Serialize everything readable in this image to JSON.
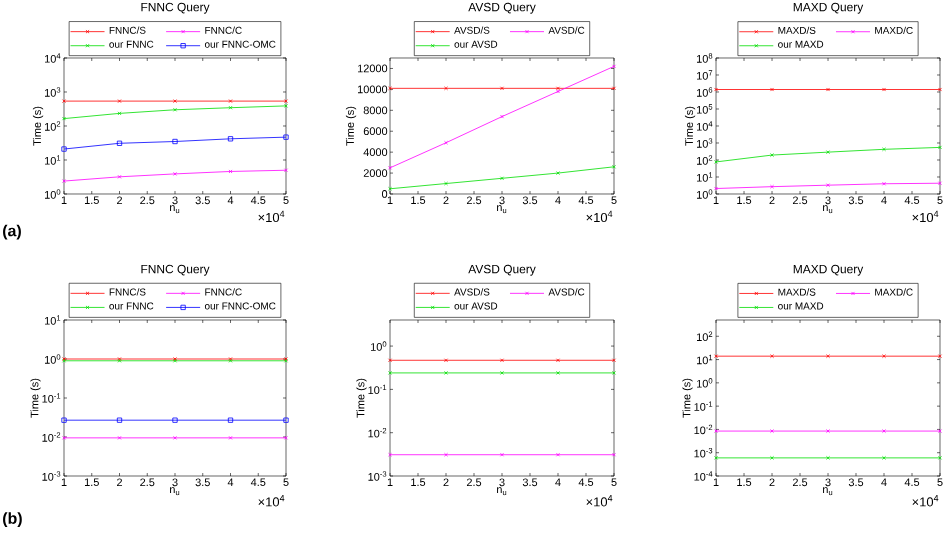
{
  "chart_data": [
    {
      "type": "line",
      "title": "FNNC Query",
      "xlabel": "n$_{u}$",
      "ylabel": "Time (s)",
      "annotations": [
        "×10$^{4}$",
        "(a)"
      ],
      "x": [
        1,
        2,
        3,
        4,
        5
      ],
      "xlim": [
        1,
        5
      ],
      "xticks": [
        1,
        1.5,
        2,
        2.5,
        3,
        3.5,
        4,
        4.5,
        5
      ],
      "log": true,
      "ylim": [
        1,
        10000
      ],
      "yticks": [
        {
          "value": 1,
          "label": "10$^{0}$"
        },
        {
          "value": 10,
          "label": "10$^{1}$"
        },
        {
          "value": 100,
          "label": "10$^{2}$"
        },
        {
          "value": 1000,
          "label": "10$^{3}$"
        },
        {
          "value": 10000,
          "label": "10$^{4}$"
        }
      ],
      "legend": "top left",
      "series": [
        {
          "name": "FNNC/S",
          "color": "#ff0000",
          "marker": "cross",
          "values": [
            540,
            540,
            540,
            540,
            540
          ]
        },
        {
          "name": "FNNC/C",
          "color": "#ff00ff",
          "marker": "cross",
          "values": [
            2.4,
            3.2,
            3.9,
            4.6,
            5.0
          ]
        },
        {
          "name": "our FNNC",
          "color": "#00dd00",
          "marker": "cross",
          "values": [
            165,
            235,
            300,
            345,
            390
          ]
        },
        {
          "name": "our FNNC-OMC",
          "color": "#0000ff",
          "marker": "square",
          "values": [
            21,
            31,
            35,
            42,
            47
          ]
        }
      ]
    },
    {
      "type": "line",
      "title": "AVSD Query",
      "xlabel": "n$_{u}$",
      "ylabel": "Time (s)",
      "annotations": [
        "×10$^{4}$"
      ],
      "x": [
        1,
        2,
        3,
        4,
        5
      ],
      "xlim": [
        1,
        5
      ],
      "xticks": [
        1,
        1.5,
        2,
        2.5,
        3,
        3.5,
        4,
        4.5,
        5
      ],
      "ylim": [
        0,
        13000
      ],
      "yticks": [
        0,
        2000,
        4000,
        6000,
        8000,
        10000,
        12000
      ],
      "legend": "top left",
      "series": [
        {
          "name": "AVSD/S",
          "color": "#ff0000",
          "marker": "cross",
          "values": [
            10100,
            10100,
            10100,
            10100,
            10100
          ]
        },
        {
          "name": "AVSD/C",
          "color": "#ff00ff",
          "marker": "cross",
          "values": [
            2500,
            4900,
            7400,
            9800,
            12200
          ]
        },
        {
          "name": "our AVSD",
          "color": "#00dd00",
          "marker": "cross",
          "values": [
            500,
            1000,
            1500,
            2000,
            2600
          ]
        }
      ]
    },
    {
      "type": "line",
      "title": "MAXD Query",
      "xlabel": "n$_{u}$",
      "ylabel": "Time (s)",
      "annotations": [
        "×10$^{4}$"
      ],
      "x": [
        1,
        2,
        3,
        4,
        5
      ],
      "xlim": [
        1,
        5
      ],
      "xticks": [
        1,
        1.5,
        2,
        2.5,
        3,
        3.5,
        4,
        4.5,
        5
      ],
      "log": true,
      "ylim": [
        1,
        100000000
      ],
      "yticks": [
        {
          "value": 1,
          "label": "10$^{0}$"
        },
        {
          "value": 10,
          "label": "10$^{1}$"
        },
        {
          "value": 100,
          "label": "10$^{2}$"
        },
        {
          "value": 1000,
          "label": "10$^{3}$"
        },
        {
          "value": 10000,
          "label": "10$^{4}$"
        },
        {
          "value": 100000,
          "label": "10$^{5}$"
        },
        {
          "value": 1000000,
          "label": "10$^{6}$"
        },
        {
          "value": 10000000,
          "label": "10$^{7}$"
        },
        {
          "value": 100000000,
          "label": "10$^{8}$"
        }
      ],
      "legend": "top left",
      "series": [
        {
          "name": "MAXD/S",
          "color": "#ff0000",
          "marker": "cross",
          "values": [
            1400000,
            1400000,
            1400000,
            1400000,
            1400000
          ]
        },
        {
          "name": "MAXD/C",
          "color": "#ff00ff",
          "marker": "cross",
          "values": [
            2.1,
            2.7,
            3.3,
            4,
            4.3
          ]
        },
        {
          "name": "our MAXD",
          "color": "#00dd00",
          "marker": "cross",
          "values": [
            77,
            195,
            290,
            425,
            550
          ]
        }
      ]
    },
    {
      "type": "line",
      "title": "FNNC Query",
      "xlabel": "n$_{u}$",
      "ylabel": "Time (s)",
      "annotations": [
        "×10$^{4}$",
        "(b)"
      ],
      "x": [
        1,
        2,
        3,
        4,
        5
      ],
      "xlim": [
        1,
        5
      ],
      "xticks": [
        1,
        1.5,
        2,
        2.5,
        3,
        3.5,
        4,
        4.5,
        5
      ],
      "log": true,
      "ylim": [
        0.001,
        10
      ],
      "yticks": [
        {
          "value": 0.001,
          "label": "10$^{-3}$"
        },
        {
          "value": 0.01,
          "label": "10$^{-2}$"
        },
        {
          "value": 0.1,
          "label": "10$^{-1}$"
        },
        {
          "value": 1,
          "label": "10$^{0}$"
        },
        {
          "value": 10,
          "label": "10$^{1}$"
        }
      ],
      "legend": "top left",
      "series": [
        {
          "name": "FNNC/S",
          "color": "#ff0000",
          "marker": "cross",
          "values": [
            1.0,
            1.0,
            1.0,
            1.0,
            1.0
          ]
        },
        {
          "name": "FNNC/C",
          "color": "#ff00ff",
          "marker": "cross",
          "values": [
            0.0095,
            0.0095,
            0.0095,
            0.0095,
            0.0095
          ]
        },
        {
          "name": "our FNNC",
          "color": "#00dd00",
          "marker": "cross",
          "values": [
            0.9,
            0.9,
            0.9,
            0.9,
            0.9
          ]
        },
        {
          "name": "our FNNC-OMC",
          "color": "#0000ff",
          "marker": "square",
          "values": [
            0.027,
            0.027,
            0.027,
            0.027,
            0.027
          ]
        }
      ]
    },
    {
      "type": "line",
      "title": "AVSD Query",
      "xlabel": "n$_{u}$",
      "ylabel": "Time (s)",
      "annotations": [
        "×10$^{4}$"
      ],
      "x": [
        1,
        2,
        3,
        4,
        5
      ],
      "xlim": [
        1,
        5
      ],
      "xticks": [
        1,
        1.5,
        2,
        2.5,
        3,
        3.5,
        4,
        4.5,
        5
      ],
      "log": true,
      "ylim": [
        0.001,
        4
      ],
      "yticks": [
        {
          "value": 0.001,
          "label": "10$^{-3}$"
        },
        {
          "value": 0.01,
          "label": "10$^{-2}$"
        },
        {
          "value": 0.1,
          "label": "10$^{-1}$"
        },
        {
          "value": 1,
          "label": "10$^{0}$"
        }
      ],
      "legend": "top left",
      "series": [
        {
          "name": "AVSD/S",
          "color": "#ff0000",
          "marker": "cross",
          "values": [
            0.47,
            0.47,
            0.47,
            0.47,
            0.47
          ]
        },
        {
          "name": "AVSD/C",
          "color": "#ff00ff",
          "marker": "cross",
          "values": [
            0.0031,
            0.0031,
            0.0031,
            0.0031,
            0.0031
          ]
        },
        {
          "name": "our AVSD",
          "color": "#00dd00",
          "marker": "cross",
          "values": [
            0.24,
            0.24,
            0.24,
            0.24,
            0.24
          ]
        }
      ]
    },
    {
      "type": "line",
      "title": "MAXD Query",
      "xlabel": "n$_{u}$",
      "ylabel": "Time (s)",
      "annotations": [
        "×10$^{4}$"
      ],
      "x": [
        1,
        2,
        3,
        4,
        5
      ],
      "xlim": [
        1,
        5
      ],
      "xticks": [
        1,
        1.5,
        2,
        2.5,
        3,
        3.5,
        4,
        4.5,
        5
      ],
      "log": true,
      "ylim": [
        0.0001,
        500
      ],
      "yticks": [
        {
          "value": 0.0001,
          "label": "10$^{-4}$"
        },
        {
          "value": 0.001,
          "label": "10$^{-3}$"
        },
        {
          "value": 0.01,
          "label": "10$^{-2}$"
        },
        {
          "value": 0.1,
          "label": "10$^{-1}$"
        },
        {
          "value": 1,
          "label": "10$^{0}$"
        },
        {
          "value": 10,
          "label": "10$^{1}$"
        },
        {
          "value": 100,
          "label": "10$^{2}$"
        }
      ],
      "legend": "top left",
      "series": [
        {
          "name": "MAXD/S",
          "color": "#ff0000",
          "marker": "cross",
          "values": [
            14,
            14,
            14,
            14,
            14
          ]
        },
        {
          "name": "MAXD/C",
          "color": "#ff00ff",
          "marker": "cross",
          "values": [
            0.0085,
            0.0085,
            0.0085,
            0.0085,
            0.0085
          ]
        },
        {
          "name": "our MAXD",
          "color": "#00dd00",
          "marker": "cross",
          "values": [
            0.0006,
            0.0006,
            0.0006,
            0.0006,
            0.0006
          ]
        }
      ]
    }
  ]
}
